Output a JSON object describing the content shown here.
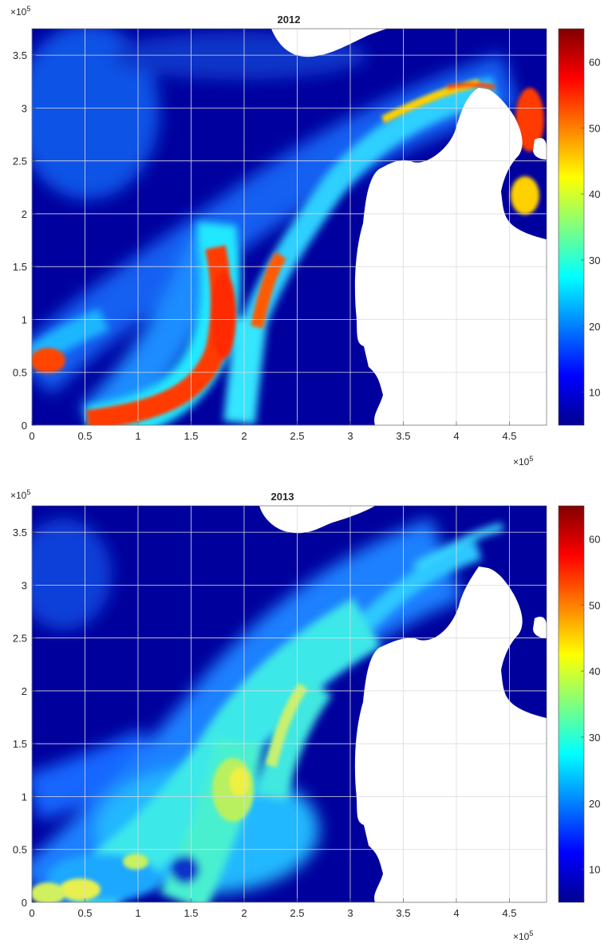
{
  "chart_data": [
    {
      "type": "heatmap",
      "title": "2012",
      "xlim": [
        0,
        4.85
      ],
      "ylim": [
        0,
        3.75
      ],
      "x_ticks": [
        "0",
        "0.5",
        "1",
        "1.5",
        "2",
        "2.5",
        "3",
        "3.5",
        "4",
        "4.5"
      ],
      "y_ticks": [
        "0",
        "0.5",
        "1",
        "1.5",
        "2",
        "2.5",
        "3",
        "3.5"
      ],
      "x_multiplier": "×10",
      "y_multiplier": "×10",
      "multiplier_exponent": "5",
      "grid": true,
      "colorbar": {
        "range": [
          5,
          65
        ],
        "ticks": [
          "10",
          "20",
          "30",
          "40",
          "50",
          "60"
        ],
        "colormap": "jet"
      },
      "features": [
        {
          "name": "main-plume",
          "x": [
            1.1,
            1.5,
            1.75,
            1.85,
            2.0,
            2.25,
            2.6,
            3.3,
            4.0,
            4.4
          ],
          "y": [
            0.05,
            0.12,
            0.6,
            1.0,
            1.3,
            1.7,
            2.2,
            2.7,
            3.1,
            3.2
          ],
          "peak": 60
        },
        {
          "name": "central-hotspot",
          "x": 1.75,
          "y": 1.0,
          "peak": 60
        },
        {
          "name": "east-hotspot",
          "x": 4.7,
          "y": 2.9,
          "peak": 58
        },
        {
          "name": "west-hotspot",
          "x": 0.05,
          "y": 0.62,
          "peak": 55
        }
      ]
    },
    {
      "type": "heatmap",
      "title": "2013",
      "xlim": [
        0,
        4.85
      ],
      "ylim": [
        0,
        3.75
      ],
      "x_ticks": [
        "0",
        "0.5",
        "1",
        "1.5",
        "2",
        "2.5",
        "3",
        "3.5",
        "4",
        "4.5"
      ],
      "y_ticks": [
        "0",
        "0.5",
        "1",
        "1.5",
        "2",
        "2.5",
        "3",
        "3.5"
      ],
      "x_multiplier": "×10",
      "y_multiplier": "×10",
      "multiplier_exponent": "5",
      "grid": true,
      "colorbar": {
        "range": [
          5,
          65
        ],
        "ticks": [
          "10",
          "20",
          "30",
          "40",
          "50",
          "60"
        ],
        "colormap": "jet"
      },
      "features": [
        {
          "name": "broad-plume",
          "x": [
            0.5,
            1.2,
            1.8,
            2.3,
            2.9,
            3.6,
            4.1
          ],
          "y": [
            0.1,
            0.5,
            1.1,
            1.7,
            2.2,
            2.75,
            3.2
          ],
          "peak": 38
        },
        {
          "name": "central-hotspot",
          "x": 1.85,
          "y": 1.15,
          "peak": 38
        },
        {
          "name": "southwest-hotspot",
          "x": 0.55,
          "y": 0.05,
          "peak": 37
        }
      ]
    }
  ],
  "colors": {
    "grid": "#e0e0e0",
    "land": "#ffffff"
  }
}
